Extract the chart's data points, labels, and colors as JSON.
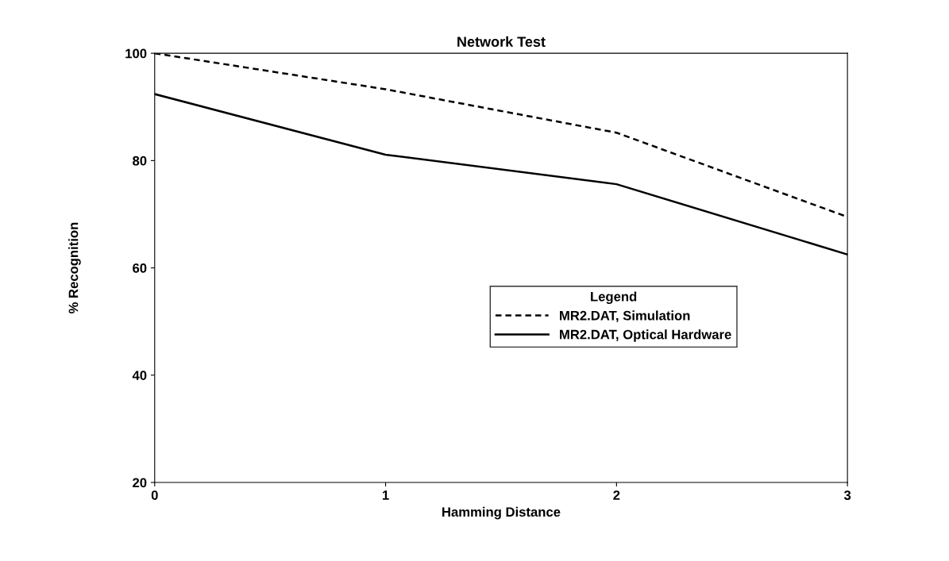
{
  "chart_data": {
    "type": "line",
    "title": "Network Test",
    "xlabel": "Hamming Distance",
    "ylabel": "% Recognition",
    "legend_title": "Legend",
    "legend": "bottom right",
    "x": [
      0,
      1,
      2,
      3
    ],
    "series": [
      {
        "name": "MR2.DAT, Simulation",
        "color": "#000000",
        "line_style": "dashed",
        "values": [
          100,
          93.3,
          85.2,
          69.5
        ]
      },
      {
        "name": "MR2.DAT, Optical Hardware",
        "color": "#000000",
        "line_style": "solid",
        "values": [
          92.4,
          81.1,
          75.6,
          62.5
        ]
      }
    ],
    "xlim": [
      0,
      3
    ],
    "xticks": [
      0,
      1,
      2,
      3
    ],
    "ylim": [
      20,
      100
    ],
    "yticks": [
      20,
      40,
      60,
      80,
      100
    ],
    "grid": false,
    "marker": "none"
  }
}
